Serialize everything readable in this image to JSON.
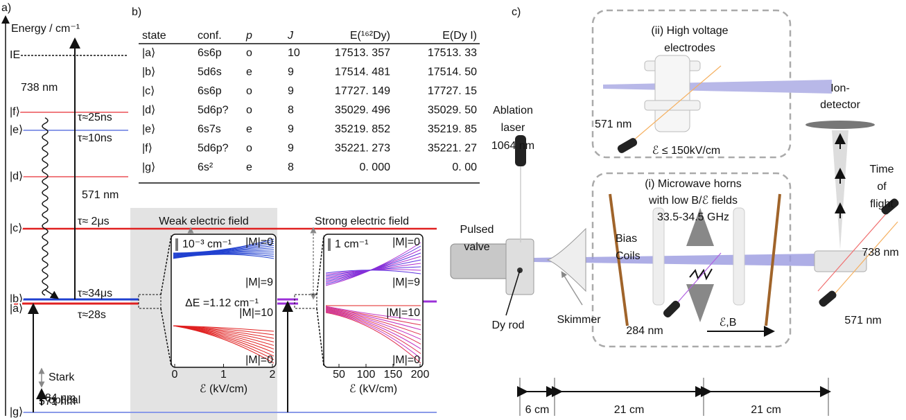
{
  "panel_labels": [
    "a)",
    "b)",
    "c)"
  ],
  "panel_a": {
    "axis_label": "Energy / cm⁻¹",
    "levels": [
      "IE",
      "|f⟩",
      "|e⟩",
      "|d⟩",
      "|c⟩",
      "|b⟩",
      "|a⟩",
      "|g⟩"
    ],
    "annotations": [
      "738 nm",
      "τ≈25ns",
      "τ≈10ns",
      "571 nm",
      "τ≈ 2μs",
      "τ≈34μs",
      "τ≈28s",
      "Stark",
      "optical",
      "284 nm",
      "571 nm"
    ],
    "weak_inset": {
      "title": "Weak electric field",
      "scale": "10⁻³ cm⁻¹",
      "labels": [
        "|M|=0",
        "|M|=9",
        "|M|=10",
        "|M|=0"
      ],
      "gap": "ΔE =1.12 cm⁻¹",
      "xticks": [
        "0",
        "1",
        "2"
      ],
      "xlabel": "ℰ (kV/cm)"
    },
    "strong_inset": {
      "title": "Strong electric field",
      "scale": "1 cm⁻¹",
      "labels": [
        "|M|=0",
        "|M|=9",
        "|M|=10",
        "|M|=0"
      ],
      "xticks": [
        "50",
        "100",
        "150",
        "200"
      ],
      "xlabel": "ℰ (kV/cm)"
    }
  },
  "table": {
    "header": [
      "state",
      "conf.",
      "p",
      "J",
      "E(¹⁶²Dy)",
      "E(Dy I)"
    ],
    "rows": [
      [
        "|a⟩",
        "6s6p",
        "o",
        "10",
        "17513. 357",
        "17513. 33"
      ],
      [
        "|b⟩",
        "5d6s",
        "e",
        "9",
        "17514. 481",
        "17514. 50"
      ],
      [
        "|c⟩",
        "6s6p",
        "o",
        "9",
        "17727. 149",
        "17727. 15"
      ],
      [
        "|d⟩",
        "5d6p?",
        "o",
        "8",
        "35029. 496",
        "35029. 50"
      ],
      [
        "|e⟩",
        "6s7s",
        "e",
        "9",
        "35219. 852",
        "35219. 85"
      ],
      [
        "|f⟩",
        "5d6p?",
        "o",
        "9",
        "35221. 273",
        "35221. 27"
      ],
      [
        "|g⟩",
        "6s²",
        "e",
        "8",
        "0. 000",
        "0. 00"
      ]
    ]
  },
  "panel_c": {
    "labels": [
      "(ii) High voltage",
      "electrodes",
      "571 nm",
      "ℰ ≤ 150kV/cm",
      "Ion-",
      "detector",
      "Ablation",
      "laser",
      "1064 nm",
      "Time",
      "of",
      "flight",
      "(i) Microwave horns",
      "with low B/ℰ fields",
      "33.5-34.5 GHz",
      "Bias",
      "Coils",
      "Pulsed",
      "valve",
      "738 nm",
      "Dy rod",
      "Skimmer",
      "284 nm",
      "ℰ,B",
      "571 nm"
    ],
    "distances": [
      "6 cm",
      "21 cm",
      "21 cm"
    ]
  }
}
